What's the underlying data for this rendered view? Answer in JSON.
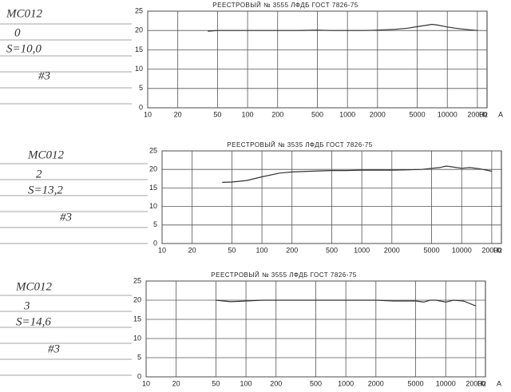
{
  "chart_data": [
    {
      "type": "line",
      "title": "РЕЕСТРОВЫЙ № 3555 ЛФДБ ГОСТ 7826-75",
      "annotations": [
        "MC012",
        "0",
        "S=10,0",
        "#3"
      ],
      "x_label": "Hz",
      "x_label_2": "A",
      "log_x": true,
      "grid": true,
      "color": "#333333",
      "xlim": [
        10,
        25000
      ],
      "xticks": [
        10,
        20,
        50,
        100,
        200,
        500,
        1000,
        2000,
        5000,
        10000,
        20000
      ],
      "ylim": [
        0,
        25
      ],
      "yticks": [
        0,
        5,
        10,
        15,
        20,
        25
      ],
      "x": [
        40,
        50,
        70,
        100,
        150,
        200,
        300,
        500,
        700,
        1000,
        1500,
        2000,
        3000,
        4000,
        5000,
        6000,
        7000,
        8000,
        10000,
        12000,
        15000,
        20000
      ],
      "values": [
        19.8,
        20,
        20,
        20,
        20,
        20,
        20,
        20.1,
        20,
        20,
        20,
        20.1,
        20.3,
        20.6,
        21,
        21.3,
        21.6,
        21.4,
        20.9,
        20.6,
        20.3,
        20
      ]
    },
    {
      "type": "line",
      "title": "РЕЕСТРОВЫЙ № 3535 ЛФДБ ГОСТ 7826-75",
      "annotations": [
        "MC012",
        "2",
        "S=13,2",
        "#3"
      ],
      "x_label": "Hz",
      "x_label_2": "A",
      "log_x": true,
      "grid": true,
      "color": "#333333",
      "xlim": [
        10,
        25000
      ],
      "xticks": [
        10,
        20,
        50,
        100,
        200,
        500,
        1000,
        2000,
        5000,
        10000,
        20000
      ],
      "ylim": [
        0,
        25
      ],
      "yticks": [
        0,
        5,
        10,
        15,
        20,
        25
      ],
      "x": [
        40,
        50,
        70,
        100,
        150,
        200,
        300,
        500,
        700,
        1000,
        1500,
        2000,
        3000,
        4000,
        5000,
        6000,
        7000,
        8000,
        10000,
        12000,
        15000,
        20000
      ],
      "values": [
        16.5,
        16.6,
        17,
        18,
        19,
        19.3,
        19.5,
        19.7,
        19.7,
        19.8,
        19.8,
        19.8,
        19.9,
        20,
        20.3,
        20.5,
        20.9,
        20.7,
        20.3,
        20.5,
        20.2,
        19.5
      ]
    },
    {
      "type": "line",
      "title": "РЕЕСТРОВЫЙ № 3555 ЛФДБ ГОСТ 7826-75",
      "annotations": [
        "MC012",
        "3",
        "S=14,6",
        "#3"
      ],
      "x_label": "Hz",
      "x_label_2": "A",
      "log_x": true,
      "grid": true,
      "color": "#333333",
      "xlim": [
        10,
        25000
      ],
      "xticks": [
        10,
        20,
        50,
        100,
        200,
        500,
        1000,
        2000,
        5000,
        10000,
        20000
      ],
      "ylim": [
        0,
        25
      ],
      "yticks": [
        0,
        5,
        10,
        15,
        20,
        25
      ],
      "x": [
        50,
        70,
        100,
        150,
        200,
        300,
        500,
        700,
        1000,
        1500,
        2000,
        3000,
        4000,
        5000,
        6000,
        7000,
        8000,
        10000,
        12000,
        15000,
        20000
      ],
      "values": [
        20,
        19.6,
        19.8,
        20,
        20,
        20,
        20,
        20,
        20,
        20,
        20,
        19.8,
        19.8,
        19.8,
        19.5,
        20,
        20,
        19.5,
        20,
        19.8,
        18.5
      ]
    }
  ]
}
